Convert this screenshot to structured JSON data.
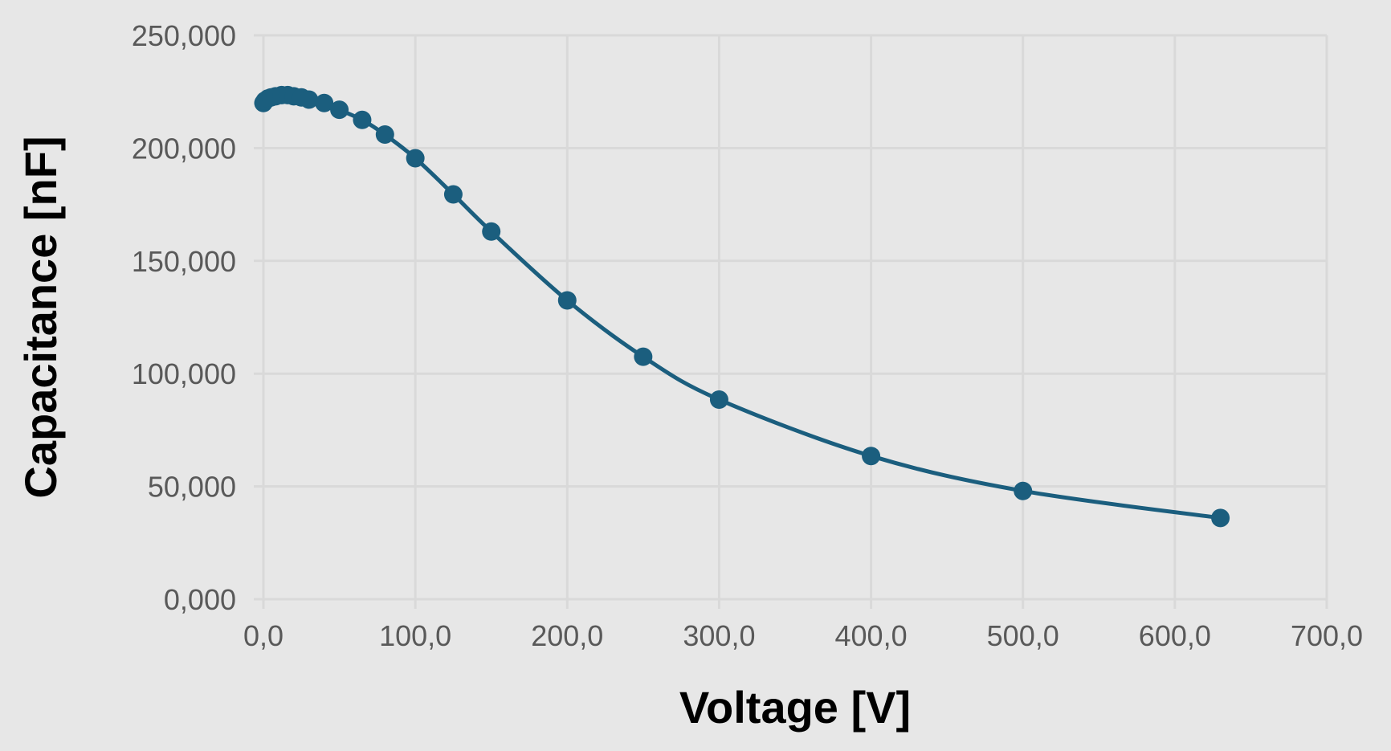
{
  "chart_data": {
    "type": "scatter",
    "title": "",
    "xlabel": "Voltage [V]",
    "ylabel": "Capacitance [nF]",
    "xlim": [
      0,
      700
    ],
    "ylim": [
      0,
      250000
    ],
    "x_ticks": [
      "0,0",
      "100,0",
      "200,0",
      "300,0",
      "400,0",
      "500,0",
      "600,0",
      "700,0"
    ],
    "y_ticks": [
      "0,000",
      "50,000",
      "100,000",
      "150,000",
      "200,000",
      "250,000"
    ],
    "grid": true,
    "legend": "none",
    "series": [
      {
        "marker": "circle",
        "line": "smooth",
        "color": "#1b5e7e",
        "points": [
          {
            "x": 0,
            "y": 220000
          },
          {
            "x": 1,
            "y": 221000
          },
          {
            "x": 3,
            "y": 222000
          },
          {
            "x": 5,
            "y": 222500
          },
          {
            "x": 8,
            "y": 223000
          },
          {
            "x": 12,
            "y": 223500
          },
          {
            "x": 16,
            "y": 223500
          },
          {
            "x": 20,
            "y": 223000
          },
          {
            "x": 25,
            "y": 222500
          },
          {
            "x": 30,
            "y": 221500
          },
          {
            "x": 40,
            "y": 220000
          },
          {
            "x": 50,
            "y": 217000
          },
          {
            "x": 65,
            "y": 212500
          },
          {
            "x": 80,
            "y": 206000
          },
          {
            "x": 100,
            "y": 195500
          },
          {
            "x": 125,
            "y": 179500
          },
          {
            "x": 150,
            "y": 163000
          },
          {
            "x": 200,
            "y": 132500
          },
          {
            "x": 250,
            "y": 107500
          },
          {
            "x": 300,
            "y": 88500
          },
          {
            "x": 400,
            "y": 63500
          },
          {
            "x": 500,
            "y": 48000
          },
          {
            "x": 630,
            "y": 36000
          }
        ]
      }
    ]
  }
}
